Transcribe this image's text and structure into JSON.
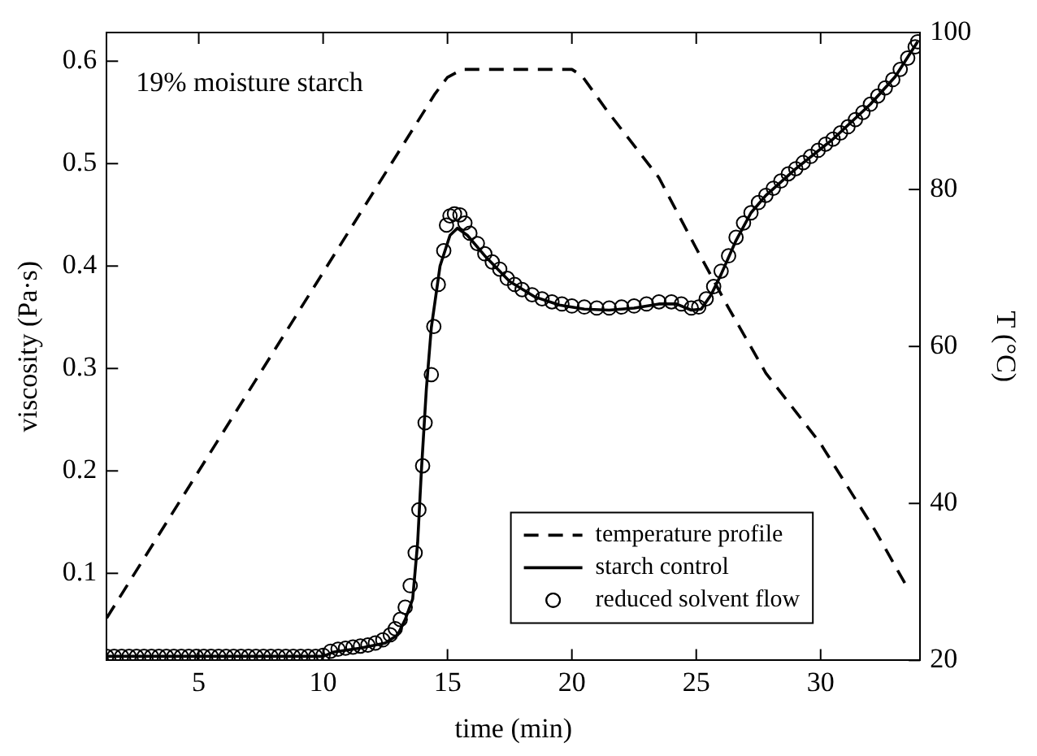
{
  "chart_data": {
    "type": "line",
    "xlabel": "time (min)",
    "ylabel": "viscosity (Pa·s)",
    "y2label": "T (°C)",
    "annotations": [
      "19% moisture starch"
    ],
    "xlim": [
      1.3,
      34
    ],
    "xticks": [
      5,
      10,
      15,
      20,
      25,
      30
    ],
    "ylim": [
      0.015,
      0.628
    ],
    "yticks": [
      0.1,
      0.2,
      0.3,
      0.4,
      0.5,
      0.6
    ],
    "y2lim": [
      20,
      100
    ],
    "y2ticks": [
      20,
      40,
      60,
      80,
      100
    ],
    "legend": "bottom right",
    "series": [
      {
        "name": "temperature profile",
        "type": "line",
        "axis": "y2",
        "color": "#000000",
        "line_style": "dashed",
        "marker": "none",
        "x": [
          1.3,
          14.5,
          15.0,
          15.6,
          20.0,
          20.4,
          21.4,
          23.5,
          25.0,
          26.3,
          27.8,
          30.0,
          32.2,
          33.5
        ],
        "values": [
          25.4,
          92.2,
          94.3,
          95.3,
          95.3,
          94.5,
          90.1,
          81.5,
          72.5,
          64.9,
          56.6,
          47.6,
          36.5,
          29.2
        ]
      },
      {
        "name": "starch control",
        "type": "line",
        "color": "#000000",
        "line_style": "solid",
        "marker": "none",
        "x": [
          1.3,
          10.0,
          10.4,
          11.5,
          12.5,
          13.0,
          13.3,
          13.6,
          13.8,
          13.95,
          14.15,
          14.35,
          14.7,
          15.1,
          15.4,
          15.8,
          16.5,
          17.5,
          18.5,
          19.5,
          20.5,
          21.5,
          22.5,
          23.5,
          24.2,
          24.8,
          25.2,
          25.6,
          26.0,
          26.6,
          27.2,
          27.8,
          29.0,
          30.5,
          32.0,
          33.0,
          33.9
        ],
        "values": [
          0.019,
          0.019,
          0.023,
          0.027,
          0.032,
          0.04,
          0.055,
          0.075,
          0.13,
          0.2,
          0.28,
          0.34,
          0.4,
          0.43,
          0.437,
          0.43,
          0.41,
          0.385,
          0.37,
          0.362,
          0.358,
          0.357,
          0.359,
          0.363,
          0.363,
          0.357,
          0.358,
          0.372,
          0.392,
          0.425,
          0.452,
          0.469,
          0.495,
          0.524,
          0.558,
          0.585,
          0.619
        ]
      },
      {
        "name": "reduced solvent flow",
        "type": "scatter",
        "color": "#000000",
        "marker": "circle",
        "x": [
          1.3,
          1.6,
          1.9,
          2.2,
          2.5,
          2.8,
          3.1,
          3.4,
          3.7,
          4.0,
          4.3,
          4.6,
          4.9,
          5.2,
          5.5,
          5.8,
          6.1,
          6.4,
          6.7,
          7.0,
          7.3,
          7.6,
          7.9,
          8.2,
          8.5,
          8.8,
          9.1,
          9.4,
          9.7,
          10.0,
          10.3,
          10.6,
          10.9,
          11.2,
          11.5,
          11.8,
          12.1,
          12.4,
          12.7,
          12.9,
          13.1,
          13.3,
          13.5,
          13.7,
          13.85,
          14.0,
          14.1,
          14.35,
          14.45,
          14.63,
          14.85,
          14.96,
          15.1,
          15.28,
          15.5,
          15.7,
          15.9,
          16.2,
          16.5,
          16.8,
          17.1,
          17.4,
          17.7,
          18.0,
          18.4,
          18.8,
          19.2,
          19.6,
          20.0,
          20.5,
          21.0,
          21.5,
          22.0,
          22.5,
          23.0,
          23.5,
          24.0,
          24.4,
          24.8,
          25.1,
          25.4,
          25.7,
          26.0,
          26.3,
          26.6,
          26.9,
          27.2,
          27.5,
          27.8,
          28.1,
          28.4,
          28.7,
          29.0,
          29.3,
          29.6,
          29.9,
          30.2,
          30.5,
          30.8,
          31.1,
          31.4,
          31.7,
          32.0,
          32.3,
          32.6,
          32.9,
          33.2,
          33.5,
          33.8,
          33.9
        ],
        "values": [
          0.019,
          0.019,
          0.019,
          0.019,
          0.019,
          0.019,
          0.019,
          0.019,
          0.019,
          0.019,
          0.019,
          0.019,
          0.019,
          0.019,
          0.019,
          0.019,
          0.019,
          0.019,
          0.019,
          0.019,
          0.019,
          0.019,
          0.019,
          0.019,
          0.019,
          0.019,
          0.019,
          0.019,
          0.019,
          0.02,
          0.024,
          0.026,
          0.027,
          0.028,
          0.029,
          0.03,
          0.032,
          0.035,
          0.04,
          0.046,
          0.055,
          0.067,
          0.088,
          0.12,
          0.162,
          0.205,
          0.247,
          0.294,
          0.341,
          0.382,
          0.415,
          0.44,
          0.449,
          0.451,
          0.45,
          0.442,
          0.432,
          0.422,
          0.412,
          0.404,
          0.397,
          0.388,
          0.382,
          0.377,
          0.372,
          0.368,
          0.365,
          0.363,
          0.361,
          0.36,
          0.359,
          0.359,
          0.36,
          0.361,
          0.363,
          0.365,
          0.365,
          0.363,
          0.359,
          0.36,
          0.368,
          0.38,
          0.395,
          0.41,
          0.428,
          0.442,
          0.452,
          0.462,
          0.469,
          0.476,
          0.483,
          0.49,
          0.495,
          0.501,
          0.507,
          0.513,
          0.519,
          0.524,
          0.53,
          0.536,
          0.543,
          0.55,
          0.558,
          0.566,
          0.574,
          0.582,
          0.592,
          0.603,
          0.614,
          0.619
        ]
      }
    ]
  }
}
